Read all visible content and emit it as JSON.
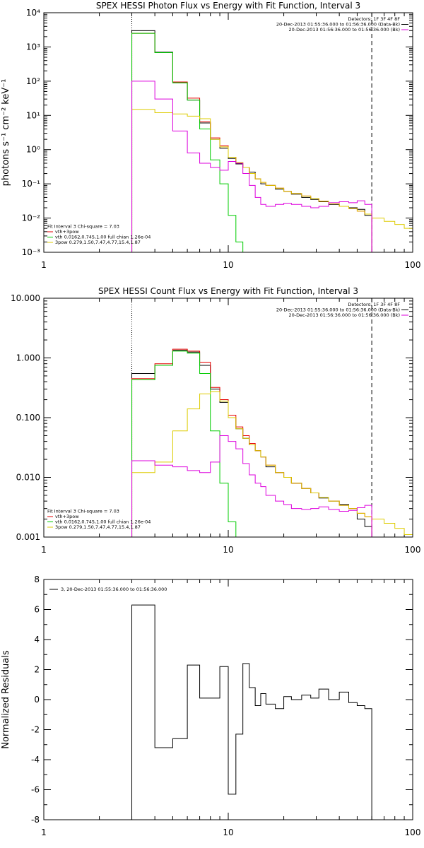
{
  "chart_data": [
    {
      "type": "line",
      "title": "SPEX HESSI Photon Flux vs Energy with Fit Function, Interval 3",
      "xlabel": "",
      "ylabel": "photons s⁻¹ cm⁻² keV⁻¹",
      "xscale": "log",
      "yscale": "log",
      "xlim": [
        1,
        100
      ],
      "ylim": [
        0.001,
        10000
      ],
      "xtick_labels": [
        "1",
        "10",
        "100"
      ],
      "ytick_labels": [
        "10⁻³",
        "10⁻²",
        "10⁻¹",
        "10⁰",
        "10¹",
        "10²",
        "10³",
        "10⁴"
      ],
      "legend_position": "top-right",
      "legend_top": [
        {
          "label": "Detectors: 1F 3F 4F 8F",
          "color": ""
        },
        {
          "label": "20-Dec-2013 01:55:36.000 to 01:56:36.000 (Data-Bk)",
          "color": "#000000"
        },
        {
          "label": "20-Dec-2013 01:56:36.000 to 01:56:36.000 (Bk)",
          "color": "#dd00dd"
        }
      ],
      "legend_bottom": [
        {
          "label": "Fit Interval 3    Chi-square = 7.03",
          "color": ""
        },
        {
          "label": "vth+3pow",
          "color": "#e60000"
        },
        {
          "label": "vth 0.0162,0.745,1.00  full chian 1.26e-04",
          "color": "#00cc00"
        },
        {
          "label": "3pow 0.279,1.50,7.47,4.77,15.4,1.87",
          "color": "#ddcc00"
        }
      ],
      "vlines": [
        {
          "x": 3,
          "style": "dotted"
        },
        {
          "x": 60,
          "style": "dashed"
        }
      ],
      "edges": [
        3,
        4,
        5,
        6,
        7,
        8,
        9,
        10,
        11,
        12,
        13,
        14,
        15,
        16,
        18,
        20,
        22,
        25,
        28,
        31,
        35,
        40,
        45,
        50,
        55,
        60,
        70,
        80,
        90,
        100
      ],
      "series": [
        {
          "name": "Data-Bk",
          "color": "#000000",
          "values": [
            3000,
            700,
            90,
            28,
            6,
            2.0,
            1.1,
            0.55,
            0.38,
            0.3,
            0.22,
            0.14,
            0.1,
            0.09,
            0.07,
            0.06,
            0.05,
            0.04,
            0.035,
            0.03,
            0.025,
            0.022,
            0.02,
            0.018,
            0.012
          ]
        },
        {
          "name": "vth+3pow",
          "color": "#e60000",
          "values": [
            2500,
            680,
            95,
            32,
            6.5,
            2.2,
            1.3,
            0.6,
            0.42,
            0.3,
            0.2,
            0.14,
            0.11,
            0.09,
            0.075,
            0.06,
            0.052,
            0.044,
            0.037,
            0.031,
            0.026,
            0.022,
            0.019,
            0.016,
            0.013
          ]
        },
        {
          "name": "vth",
          "color": "#00cc00",
          "values": [
            2500,
            680,
            90,
            28,
            4,
            0.5,
            0.1,
            0.012,
            0.002,
            0.0009
          ]
        },
        {
          "name": "3pow",
          "color": "#ddcc00",
          "values": [
            15,
            12,
            11,
            9.5,
            8,
            2.0,
            1.2,
            0.6,
            0.42,
            0.3,
            0.2,
            0.14,
            0.11,
            0.09,
            0.075,
            0.06,
            0.052,
            0.044,
            0.037,
            0.031,
            0.026,
            0.022,
            0.019,
            0.016,
            0.013,
            0.01,
            0.008,
            0.0065,
            0.005
          ]
        },
        {
          "name": "Bk",
          "color": "#dd00dd",
          "values": [
            100,
            30,
            3.5,
            0.8,
            0.4,
            0.3,
            0.25,
            0.45,
            0.4,
            0.2,
            0.09,
            0.04,
            0.025,
            0.022,
            0.025,
            0.027,
            0.025,
            0.022,
            0.02,
            0.022,
            0.028,
            0.03,
            0.028,
            0.032,
            0.025
          ]
        }
      ]
    },
    {
      "type": "line",
      "title": "SPEX HESSI Count Flux vs Energy with Fit Function, Interval 3",
      "xlabel": "",
      "ylabel": "",
      "xscale": "log",
      "yscale": "log",
      "xlim": [
        1,
        100
      ],
      "ylim": [
        0.001,
        10
      ],
      "xtick_labels": [
        "1",
        "10",
        "100"
      ],
      "ytick_labels": [
        "0.001",
        "0.010",
        "0.100",
        "1.000",
        "10.000"
      ],
      "legend_position": "top-right",
      "legend_top": [
        {
          "label": "Detectors: 1F 3F 4F 8F",
          "color": ""
        },
        {
          "label": "20-Dec-2013 01:55:36.000 to 01:56:36.000 (Data-Bk)",
          "color": "#000000"
        },
        {
          "label": "20-Dec-2013 01:56:36.000 to 01:56:36.000 (Bk)",
          "color": "#dd00dd"
        }
      ],
      "legend_bottom": [
        {
          "label": "Fit Interval 3    Chi-square = 7.03",
          "color": ""
        },
        {
          "label": "vth+3pow",
          "color": "#e60000"
        },
        {
          "label": "vth 0.0162,0.745,1.00  full chian 1.26e-04",
          "color": "#00cc00"
        },
        {
          "label": "3pow 0.279,1.50,7.47,4.77,15.4,1.87",
          "color": "#ddcc00"
        }
      ],
      "vlines": [
        {
          "x": 3,
          "style": "dotted"
        },
        {
          "x": 60,
          "style": "dashed"
        }
      ],
      "edges": [
        3,
        4,
        5,
        6,
        7,
        8,
        9,
        10,
        11,
        12,
        13,
        14,
        15,
        16,
        18,
        20,
        22,
        25,
        28,
        31,
        35,
        40,
        45,
        50,
        55,
        60,
        70,
        80,
        90,
        100
      ],
      "series": [
        {
          "name": "Data-Bk",
          "color": "#000000",
          "values": [
            0.55,
            0.75,
            1.35,
            1.25,
            0.75,
            0.3,
            0.18,
            0.1,
            0.065,
            0.045,
            0.035,
            0.028,
            0.022,
            0.015,
            0.012,
            0.01,
            0.008,
            0.0065,
            0.0055,
            0.0045,
            0.004,
            0.0035,
            0.003,
            0.002,
            0.0015
          ]
        },
        {
          "name": "vth+3pow",
          "color": "#e60000",
          "values": [
            0.45,
            0.8,
            1.4,
            1.3,
            0.85,
            0.32,
            0.2,
            0.11,
            0.07,
            0.05,
            0.037,
            0.028,
            0.022,
            0.016,
            0.012,
            0.01,
            0.008,
            0.0065,
            0.0055,
            0.0046,
            0.004,
            0.0034,
            0.003,
            0.0025,
            0.0022
          ]
        },
        {
          "name": "vth",
          "color": "#00cc00",
          "values": [
            0.43,
            0.75,
            1.3,
            1.2,
            0.55,
            0.06,
            0.008,
            0.0018,
            0.0009
          ]
        },
        {
          "name": "3pow",
          "color": "#ddcc00",
          "values": [
            0.012,
            0.018,
            0.06,
            0.14,
            0.25,
            0.27,
            0.19,
            0.1,
            0.065,
            0.045,
            0.035,
            0.028,
            0.022,
            0.016,
            0.012,
            0.01,
            0.008,
            0.0065,
            0.0055,
            0.0046,
            0.004,
            0.0034,
            0.003,
            0.0025,
            0.0022,
            0.002,
            0.0017,
            0.0014,
            0.0011
          ]
        },
        {
          "name": "Bk",
          "color": "#dd00dd",
          "values": [
            0.019,
            0.016,
            0.015,
            0.013,
            0.012,
            0.018,
            0.05,
            0.04,
            0.03,
            0.017,
            0.011,
            0.008,
            0.007,
            0.005,
            0.004,
            0.0035,
            0.003,
            0.0029,
            0.003,
            0.0032,
            0.0029,
            0.0027,
            0.0028,
            0.0031,
            0.0034
          ]
        }
      ]
    },
    {
      "type": "line",
      "title": "",
      "xlabel": "",
      "ylabel": "Normalized Residuals",
      "xscale": "log",
      "yscale": "linear",
      "xlim": [
        1,
        100
      ],
      "ylim": [
        -8,
        8
      ],
      "xtick_labels": [
        "1",
        "10",
        "100"
      ],
      "ytick_labels": [
        "-8",
        "-6",
        "-4",
        "-2",
        "0",
        "2",
        "4",
        "6",
        "8"
      ],
      "legend_position": "top-left",
      "legend_top": [
        {
          "label": "3, 20-Dec-2013 01:55:36.000 to 01:56:36.000",
          "color": "#000000"
        }
      ],
      "legend_bottom": [],
      "vlines": [],
      "edges": [
        3,
        4,
        5,
        6,
        7,
        8,
        9,
        10,
        11,
        12,
        13,
        14,
        15,
        16,
        18,
        20,
        22,
        25,
        28,
        31,
        35,
        40,
        45,
        50,
        55,
        60
      ],
      "series": [
        {
          "name": "Residuals",
          "color": "#000000",
          "values": [
            6.3,
            -3.2,
            -2.6,
            2.3,
            0.1,
            0.1,
            2.2,
            -6.3,
            -2.3,
            2.4,
            0.8,
            -0.4,
            0.4,
            -0.3,
            -0.6,
            0.2,
            0.0,
            0.3,
            0.1,
            0.7,
            0.0,
            0.5,
            -0.2,
            -0.4,
            -0.6
          ]
        }
      ]
    }
  ]
}
